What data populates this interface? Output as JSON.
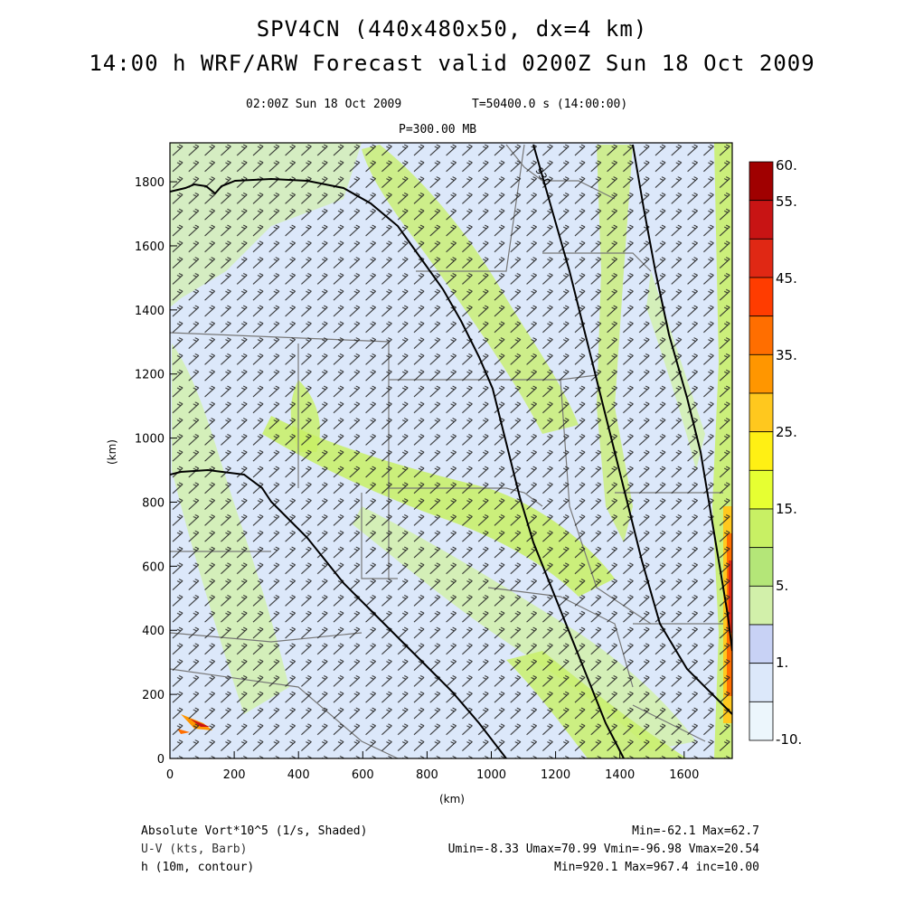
{
  "header": {
    "line1": "SPV4CN (440x480x50, dx=4 km)",
    "line2": "14:00 h WRF/ARW Forecast valid 0200Z Sun 18 Oct 2009",
    "valid_time": "02:00Z Sun 18 Oct 2009",
    "sim_time": "T=50400.0 s (14:00:00)",
    "pressure": "P=300.00 MB"
  },
  "map": {
    "x_ticks": [
      "0",
      "200",
      "400",
      "600",
      "800",
      "1000",
      "1200",
      "1400",
      "1600"
    ],
    "y_ticks": [
      "0",
      "200",
      "400",
      "600",
      "800",
      "1000",
      "1200",
      "1400",
      "1600",
      "1800"
    ],
    "x_label": "(km)",
    "y_label": "(km)",
    "contour_label": "930"
  },
  "colorbar": {
    "labels": [
      "60.",
      "55.",
      "45.",
      "35.",
      "25.",
      "15.",
      "5.",
      "1.",
      "-10."
    ],
    "colors": [
      "#a00000",
      "#c81414",
      "#e02814",
      "#ff3c00",
      "#ff6e00",
      "#ff9600",
      "#ffc81e",
      "#fff014",
      "#e6ff32",
      "#c8f064",
      "#b4e678",
      "#d2f0aa",
      "#c8d2f5",
      "#dce8fa",
      "#ecf6fc"
    ]
  },
  "footer": {
    "row1_left": "Absolute Vort*10^5 (1/s, Shaded)",
    "row1_right": "Min=-62.1 Max=62.7",
    "row2_left": "U-V (kts, Barb)",
    "row2_right": "Umin=-8.33 Umax=70.99 Vmin=-96.98 Vmax=20.54",
    "row3_left": "h (10m, contour)",
    "row3_right": "Min=920.1 Max=967.4 inc=10.00"
  }
}
